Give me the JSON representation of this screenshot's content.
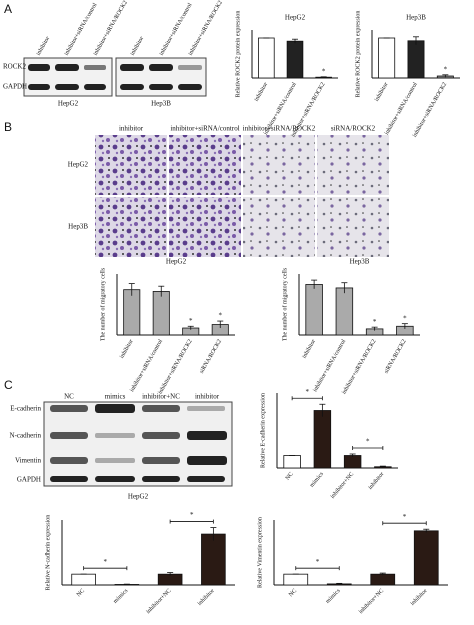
{
  "panels": [
    "A",
    "B",
    "C"
  ],
  "blot_a": {
    "lanes": [
      "inhibitor",
      "inhibitor+siRNA/control",
      "inhibitor+siRNA/ROCK2",
      "inhibitor",
      "inhibitor+siRNA/control",
      "inhibitor+siRNA/ROCK2"
    ],
    "rows": [
      "ROCK2",
      "GAPDH"
    ],
    "cells": [
      "HepG2",
      "Hep3B"
    ]
  },
  "micrographs": {
    "columns": [
      "inhibitor",
      "inhibitor+siRNA/control",
      "inhibitor+siRNA/ROCK2",
      "siRNA/ROCK2"
    ],
    "rows": [
      "HepG2",
      "Hep3B"
    ]
  },
  "blot_c": {
    "columns": [
      "NC",
      "mimics",
      "inhibitor+NC",
      "inhibitor"
    ],
    "rows": [
      "E-cadherin",
      "N-cadherin",
      "Vimentin",
      "GAPDH"
    ],
    "cell": "HepG2"
  },
  "chart_data": [
    {
      "type": "bar",
      "title": "HepG2",
      "y_label": "Relative ROCK2 protein expression",
      "categories": [
        "inhibitor",
        "inhibitor+siRNA/control",
        "inhibitor+siRNA/ROCK2"
      ],
      "values": [
        1.0,
        0.92,
        0.02
      ],
      "errors": [
        0,
        0.05,
        0.01
      ],
      "colors": [
        "#ffffff",
        "#222222",
        "#888888"
      ],
      "annotations": [
        null,
        null,
        "*"
      ],
      "ylim": [
        0,
        1.2
      ]
    },
    {
      "type": "bar",
      "title": "Hep3B",
      "y_label": "Relative ROCK2 protein expression",
      "categories": [
        "inhibitor",
        "inhibitor+siRNA/control",
        "inhibitor+siRNA/ROCK2"
      ],
      "values": [
        1.0,
        0.93,
        0.05
      ],
      "errors": [
        0,
        0.1,
        0.03
      ],
      "colors": [
        "#ffffff",
        "#222222",
        "#888888"
      ],
      "annotations": [
        null,
        null,
        "*"
      ],
      "ylim": [
        0,
        1.2
      ]
    },
    {
      "type": "bar",
      "title": "HepG2",
      "y_label": "The number of migratory cells",
      "categories": [
        "inhibitor",
        "inhibitor+siRNA/control",
        "inhibitor+siRNA/ROCK2",
        "siRNA/ROCK2"
      ],
      "values": [
        52,
        50,
        8,
        12
      ],
      "errors": [
        7,
        6,
        2,
        4
      ],
      "colors": [
        "#aaaaaa",
        "#aaaaaa",
        "#aaaaaa",
        "#aaaaaa"
      ],
      "annotations": [
        null,
        null,
        "*",
        "*"
      ],
      "ylim": [
        0,
        70
      ]
    },
    {
      "type": "bar",
      "title": "Hep3B",
      "y_label": "The number of migratory cells",
      "categories": [
        "inhibitor",
        "inhibitor+siRNA/control",
        "inhibitor+siRNA/ROCK2",
        "siRNA/ROCK2"
      ],
      "values": [
        58,
        54,
        7,
        10
      ],
      "errors": [
        5,
        6,
        2,
        3
      ],
      "colors": [
        "#aaaaaa",
        "#aaaaaa",
        "#aaaaaa",
        "#aaaaaa"
      ],
      "annotations": [
        null,
        null,
        "*",
        "*"
      ],
      "ylim": [
        0,
        70
      ]
    },
    {
      "type": "bar",
      "y_label": "Relative E-cadherin expression",
      "categories": [
        "NC",
        "mimics",
        "inhibitor+NC",
        "inhibitor"
      ],
      "values": [
        1.0,
        4.6,
        1.0,
        0.1
      ],
      "errors": [
        0,
        0.5,
        0.12,
        0.05
      ],
      "colors": [
        "#ffffff",
        "#2a1a14",
        "#2a1a14",
        "#2a1a14"
      ],
      "bracket_labels": [
        null,
        "*",
        null,
        "*"
      ],
      "ylim": [
        0,
        6
      ]
    },
    {
      "type": "bar",
      "y_label": "Relative N-cadherin expression",
      "categories": [
        "NC",
        "mimics",
        "inhibitor+NC",
        "inhibitor"
      ],
      "values": [
        1.0,
        0.05,
        1.0,
        4.7
      ],
      "errors": [
        0,
        0.03,
        0.15,
        0.6
      ],
      "colors": [
        "#ffffff",
        "#2a1a14",
        "#2a1a14",
        "#2a1a14"
      ],
      "bracket_labels": [
        null,
        "*",
        null,
        "*"
      ],
      "ylim": [
        0,
        6
      ]
    },
    {
      "type": "bar",
      "y_label": "Relative Vimentin expression",
      "categories": [
        "NC",
        "mimics",
        "inhibitor+NC",
        "inhibitor"
      ],
      "values": [
        1.0,
        0.1,
        1.0,
        5.0
      ],
      "errors": [
        0,
        0.05,
        0.1,
        0.15
      ],
      "colors": [
        "#ffffff",
        "#2a1a14",
        "#2a1a14",
        "#2a1a14"
      ],
      "bracket_labels": [
        null,
        "*",
        null,
        "*"
      ],
      "ylim": [
        0,
        6
      ]
    }
  ]
}
